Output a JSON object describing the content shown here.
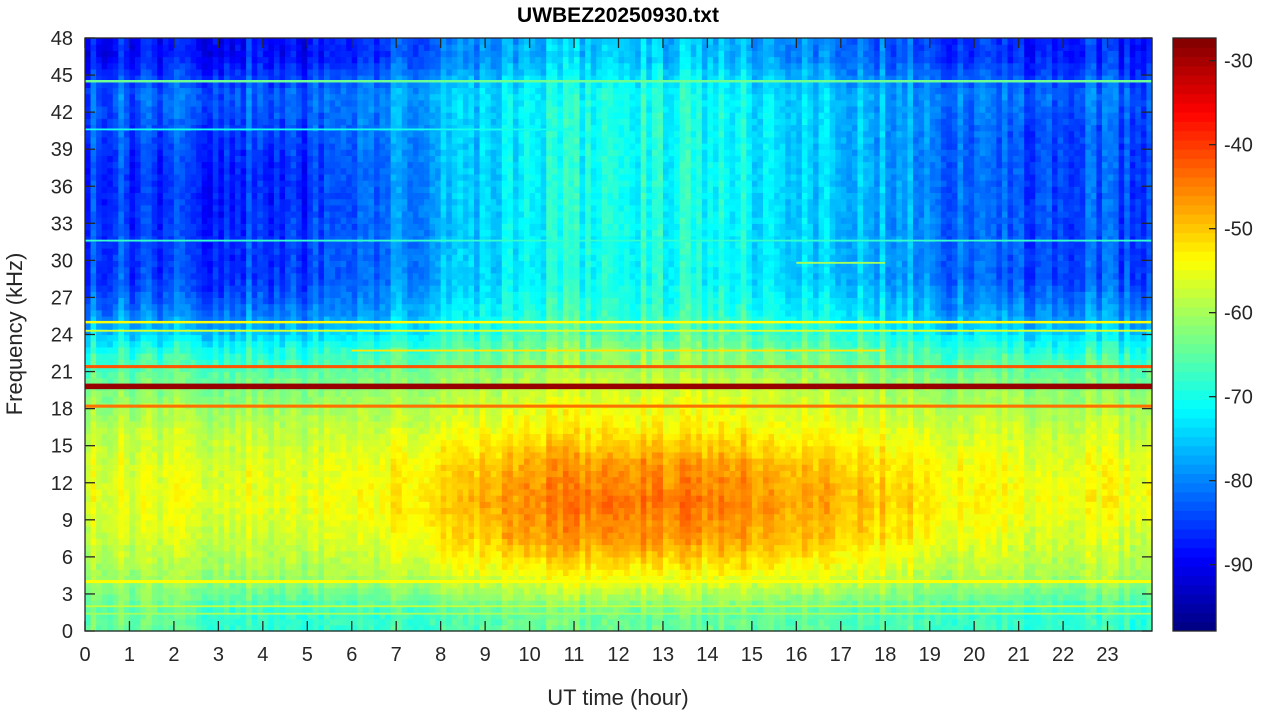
{
  "chart_data": {
    "type": "heatmap",
    "title": "UWBEZ20250930.txt",
    "xlabel": "UT time (hour)",
    "ylabel": "Frequency (kHz)",
    "xlim": [
      0,
      24
    ],
    "ylim": [
      0,
      48
    ],
    "xticks": [
      "0",
      "1",
      "2",
      "3",
      "4",
      "5",
      "6",
      "7",
      "8",
      "9",
      "10",
      "11",
      "12",
      "13",
      "14",
      "15",
      "16",
      "17",
      "18",
      "19",
      "20",
      "21",
      "22",
      "23"
    ],
    "yticks": [
      "0",
      "3",
      "6",
      "9",
      "12",
      "15",
      "18",
      "21",
      "24",
      "27",
      "30",
      "33",
      "36",
      "39",
      "42",
      "45",
      "48"
    ],
    "colorbar": {
      "ticks": [
        "-30",
        "-40",
        "-50",
        "-60",
        "-70",
        "-80",
        "-90"
      ],
      "clim": [
        -97.9,
        -27.3
      ],
      "colormap": "jet"
    },
    "hours": [
      0,
      1,
      2,
      3,
      4,
      5,
      6,
      7,
      8,
      9,
      10,
      11,
      12,
      13,
      14,
      15,
      16,
      17,
      18,
      19,
      20,
      21,
      22,
      23
    ],
    "freq_bands_khz": [
      [
        0,
        3
      ],
      [
        3,
        6
      ],
      [
        6,
        9
      ],
      [
        9,
        12
      ],
      [
        12,
        15
      ],
      [
        15,
        18
      ],
      [
        18,
        21
      ],
      [
        21,
        24
      ],
      [
        24,
        27
      ],
      [
        27,
        30
      ],
      [
        30,
        33
      ],
      [
        33,
        36
      ],
      [
        36,
        39
      ],
      [
        39,
        42
      ],
      [
        42,
        45
      ],
      [
        45,
        48
      ]
    ],
    "values_db": [
      [
        -64,
        -64,
        -66,
        -68,
        -68,
        -68,
        -68,
        -67,
        -66,
        -64,
        -64,
        -64,
        -64,
        -64,
        -64,
        -64,
        -65,
        -66,
        -66,
        -67,
        -68,
        -68,
        -68,
        -68
      ],
      [
        -60,
        -60,
        -60,
        -60,
        -60,
        -60,
        -59,
        -58,
        -56,
        -55,
        -54,
        -54,
        -54,
        -54,
        -54,
        -54,
        -55,
        -56,
        -58,
        -59,
        -59,
        -59,
        -59,
        -60
      ],
      [
        -57,
        -57,
        -57,
        -57,
        -57,
        -57,
        -56,
        -54,
        -51,
        -48,
        -47,
        -47,
        -46,
        -47,
        -47,
        -48,
        -49,
        -51,
        -53,
        -55,
        -56,
        -56,
        -56,
        -57
      ],
      [
        -55,
        -55,
        -55,
        -55,
        -55,
        -55,
        -54,
        -52,
        -49,
        -46,
        -45,
        -44,
        -44,
        -44,
        -45,
        -46,
        -47,
        -49,
        -51,
        -53,
        -54,
        -54,
        -54,
        -54
      ],
      [
        -56,
        -56,
        -56,
        -56,
        -56,
        -56,
        -55,
        -53,
        -51,
        -48,
        -47,
        -47,
        -46,
        -47,
        -47,
        -48,
        -49,
        -51,
        -52,
        -54,
        -55,
        -55,
        -55,
        -55
      ],
      [
        -58,
        -58,
        -58,
        -58,
        -58,
        -58,
        -58,
        -57,
        -55,
        -54,
        -53,
        -53,
        -53,
        -53,
        -53,
        -54,
        -54,
        -55,
        -56,
        -57,
        -57,
        -57,
        -57,
        -58
      ],
      [
        -62,
        -62,
        -62,
        -62,
        -62,
        -62,
        -61,
        -60,
        -59,
        -58,
        -57,
        -57,
        -57,
        -57,
        -57,
        -57,
        -58,
        -59,
        -60,
        -61,
        -61,
        -61,
        -61,
        -62
      ],
      [
        -68,
        -68,
        -68,
        -68,
        -68,
        -68,
        -67,
        -66,
        -64,
        -63,
        -62,
        -62,
        -62,
        -62,
        -62,
        -62,
        -63,
        -64,
        -65,
        -66,
        -67,
        -67,
        -67,
        -68
      ],
      [
        -79,
        -80,
        -80,
        -80,
        -80,
        -80,
        -78,
        -75,
        -72,
        -69,
        -68,
        -68,
        -68,
        -68,
        -68,
        -69,
        -70,
        -72,
        -74,
        -77,
        -78,
        -78,
        -78,
        -79
      ],
      [
        -84,
        -85,
        -85,
        -85,
        -85,
        -84,
        -82,
        -79,
        -75,
        -72,
        -71,
        -70,
        -70,
        -70,
        -71,
        -72,
        -74,
        -76,
        -78,
        -81,
        -83,
        -83,
        -83,
        -84
      ],
      [
        -84,
        -85,
        -85,
        -85,
        -85,
        -84,
        -82,
        -79,
        -75,
        -72,
        -71,
        -70,
        -70,
        -70,
        -71,
        -72,
        -74,
        -76,
        -78,
        -81,
        -83,
        -83,
        -83,
        -84
      ],
      [
        -85,
        -86,
        -86,
        -86,
        -86,
        -85,
        -82,
        -79,
        -75,
        -72,
        -71,
        -70,
        -70,
        -70,
        -71,
        -72,
        -74,
        -76,
        -78,
        -81,
        -83,
        -83,
        -83,
        -84
      ],
      [
        -85,
        -86,
        -86,
        -86,
        -86,
        -85,
        -82,
        -79,
        -75,
        -72,
        -71,
        -70,
        -70,
        -70,
        -71,
        -72,
        -74,
        -76,
        -78,
        -81,
        -83,
        -83,
        -83,
        -84
      ],
      [
        -83,
        -84,
        -84,
        -84,
        -84,
        -83,
        -81,
        -78,
        -75,
        -72,
        -71,
        -70,
        -70,
        -70,
        -71,
        -72,
        -74,
        -76,
        -78,
        -81,
        -83,
        -83,
        -83,
        -84
      ],
      [
        -82,
        -82,
        -82,
        -82,
        -82,
        -82,
        -80,
        -77,
        -74,
        -72,
        -71,
        -70,
        -70,
        -70,
        -71,
        -72,
        -74,
        -76,
        -78,
        -80,
        -81,
        -81,
        -81,
        -82
      ],
      [
        -88,
        -88,
        -88,
        -88,
        -88,
        -88,
        -86,
        -83,
        -80,
        -77,
        -76,
        -75,
        -75,
        -75,
        -76,
        -77,
        -79,
        -81,
        -83,
        -85,
        -86,
        -86,
        -86,
        -87
      ]
    ],
    "narrowband_lines": [
      {
        "freq_khz": 19.8,
        "db": -29,
        "start_hour": 0,
        "end_hour": 24,
        "width_khz": 0.45
      },
      {
        "freq_khz": 21.4,
        "db": -42,
        "start_hour": 0,
        "end_hour": 24,
        "width_khz": 0.25
      },
      {
        "freq_khz": 18.2,
        "db": -44,
        "start_hour": 0,
        "end_hour": 24,
        "width_khz": 0.25
      },
      {
        "freq_khz": 25.0,
        "db": -54,
        "start_hour": 0,
        "end_hour": 24,
        "width_khz": 0.2
      },
      {
        "freq_khz": 24.3,
        "db": -57,
        "start_hour": 0,
        "end_hour": 24,
        "width_khz": 0.15
      },
      {
        "freq_khz": 22.7,
        "db": -52,
        "start_hour": 6,
        "end_hour": 18,
        "width_khz": 0.15
      },
      {
        "freq_khz": 4.0,
        "db": -54,
        "start_hour": 0,
        "end_hour": 24,
        "width_khz": 0.25
      },
      {
        "freq_khz": 2.0,
        "db": -58,
        "start_hour": 0,
        "end_hour": 24,
        "width_khz": 0.15
      },
      {
        "freq_khz": 1.4,
        "db": -60,
        "start_hour": 0,
        "end_hour": 24,
        "width_khz": 0.15
      },
      {
        "freq_khz": 44.5,
        "db": -64,
        "start_hour": 0,
        "end_hour": 24,
        "width_khz": 0.2
      },
      {
        "freq_khz": 31.6,
        "db": -68,
        "start_hour": 0,
        "end_hour": 24,
        "width_khz": 0.15
      },
      {
        "freq_khz": 29.8,
        "db": -60,
        "start_hour": 16,
        "end_hour": 18,
        "width_khz": 0.15
      },
      {
        "freq_khz": 40.6,
        "db": -70,
        "start_hour": 0,
        "end_hour": 11,
        "width_khz": 0.15
      }
    ]
  }
}
